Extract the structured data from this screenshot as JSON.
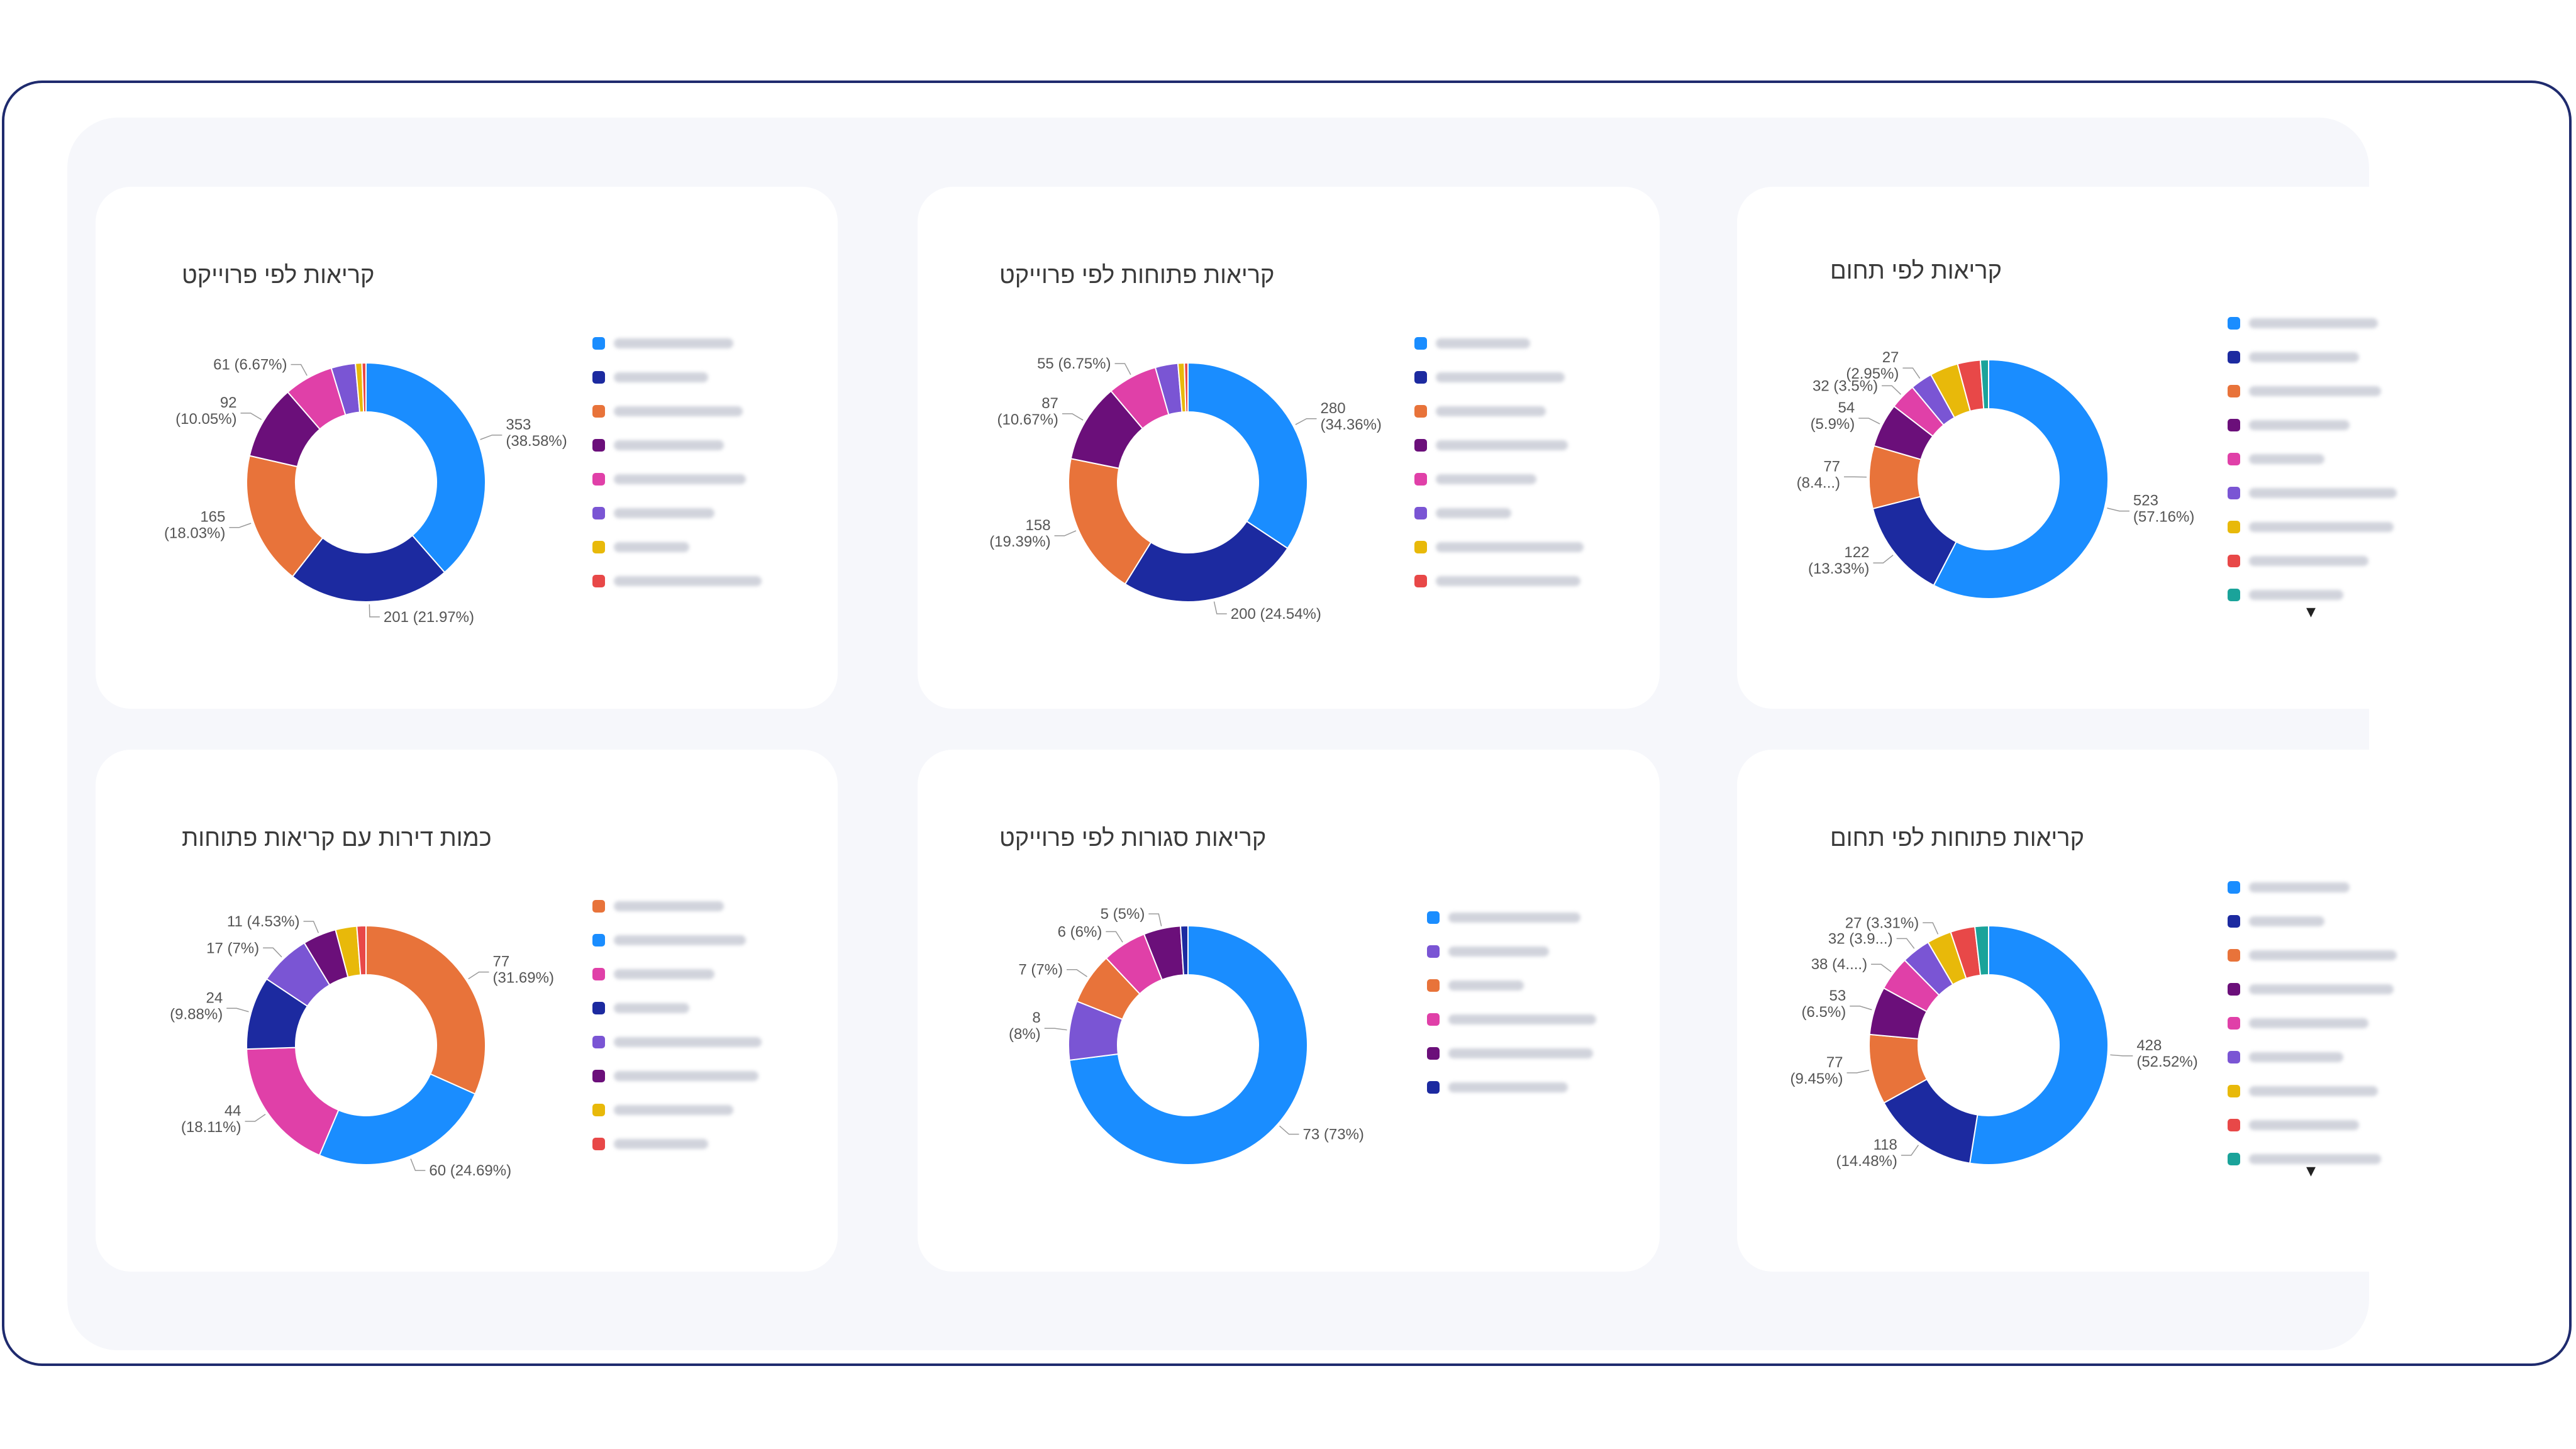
{
  "charts": {
    "c1": {
      "title": "קריאות לפי פרוייקט"
    },
    "c2": {
      "title": "קריאות פתוחות לפי פרוייקט"
    },
    "c3": {
      "title": "קריאות לפי תחום"
    },
    "c4": {
      "title": "כמות דירות עם קריאות פתוחות"
    },
    "c5": {
      "title": "קריאות סגורות לפי פרוייקט"
    },
    "c6": {
      "title": "קריאות פתוחות לפי תחום"
    }
  },
  "chart_data": [
    {
      "id": "c1",
      "type": "pie",
      "title": "קריאות לפי פרוייקט",
      "slices": [
        {
          "value": 353,
          "percent": 38.58,
          "color": "#1a8dff",
          "label": [
            "353",
            "(38.58%)"
          ]
        },
        {
          "value": 201,
          "percent": 21.97,
          "color": "#1c2aa0",
          "label": [
            "201 (21.97%)"
          ]
        },
        {
          "value": 165,
          "percent": 18.03,
          "color": "#e8733a",
          "label": [
            "165",
            "(18.03%)"
          ]
        },
        {
          "value": 92,
          "percent": 10.05,
          "color": "#6b0f7a",
          "label": [
            "92",
            "(10.05%)"
          ]
        },
        {
          "value": 61,
          "percent": 6.67,
          "color": "#e040a8",
          "label": [
            "61 (6.67%)"
          ]
        },
        {
          "value": 30,
          "percent": 3.2,
          "color": "#7a55d4",
          "label": null
        },
        {
          "value": 8,
          "percent": 0.9,
          "color": "#e8b90a",
          "label": null
        },
        {
          "value": 5,
          "percent": 0.5,
          "color": "#e84848",
          "label": null
        }
      ],
      "legend_colors": [
        "#1a8dff",
        "#1c2aa0",
        "#e8733a",
        "#6b0f7a",
        "#e040a8",
        "#7a55d4",
        "#e8b90a",
        "#e84848"
      ]
    },
    {
      "id": "c2",
      "type": "pie",
      "title": "קריאות פתוחות לפי פרוייקט",
      "slices": [
        {
          "value": 280,
          "percent": 34.36,
          "color": "#1a8dff",
          "label": [
            "280",
            "(34.36%)"
          ]
        },
        {
          "value": 200,
          "percent": 24.54,
          "color": "#1c2aa0",
          "label": [
            "200 (24.54%)"
          ]
        },
        {
          "value": 158,
          "percent": 19.39,
          "color": "#e8733a",
          "label": [
            "158",
            "(19.39%)"
          ]
        },
        {
          "value": 87,
          "percent": 10.67,
          "color": "#6b0f7a",
          "label": [
            "87",
            "(10.67%)"
          ]
        },
        {
          "value": 55,
          "percent": 6.75,
          "color": "#e040a8",
          "label": [
            "55 (6.75%)"
          ]
        },
        {
          "value": 25,
          "percent": 3.0,
          "color": "#7a55d4",
          "label": null
        },
        {
          "value": 7,
          "percent": 0.8,
          "color": "#e8b90a",
          "label": null
        },
        {
          "value": 4,
          "percent": 0.5,
          "color": "#e84848",
          "label": null
        }
      ],
      "legend_colors": [
        "#1a8dff",
        "#1c2aa0",
        "#e8733a",
        "#6b0f7a",
        "#e040a8",
        "#7a55d4",
        "#e8b90a",
        "#e84848"
      ]
    },
    {
      "id": "c3",
      "type": "pie",
      "title": "קריאות לפי תחום",
      "slices": [
        {
          "value": 523,
          "percent": 57.16,
          "color": "#1a8dff",
          "label": [
            "523",
            "(57.16%)"
          ]
        },
        {
          "value": 122,
          "percent": 13.33,
          "color": "#1c2aa0",
          "label": [
            "122",
            "(13.33%)"
          ]
        },
        {
          "value": 77,
          "percent": 8.4,
          "color": "#e8733a",
          "label": [
            "77",
            "(8.4...)"
          ]
        },
        {
          "value": 54,
          "percent": 5.9,
          "color": "#6b0f7a",
          "label": [
            "54",
            "(5.9%)"
          ]
        },
        {
          "value": 32,
          "percent": 3.5,
          "color": "#e040a8",
          "label": [
            "32 (3.5%)"
          ]
        },
        {
          "value": 27,
          "percent": 2.95,
          "color": "#7a55d4",
          "label": [
            "27",
            "(2.95%)"
          ]
        },
        {
          "value": 35,
          "percent": 3.8,
          "color": "#e8b90a",
          "label": null
        },
        {
          "value": 28,
          "percent": 3.0,
          "color": "#e84848",
          "label": null
        },
        {
          "value": 10,
          "percent": 1.1,
          "color": "#1aa39a",
          "label": null
        }
      ],
      "legend_colors": [
        "#1a8dff",
        "#1c2aa0",
        "#e8733a",
        "#6b0f7a",
        "#e040a8",
        "#7a55d4",
        "#e8b90a",
        "#e84848",
        "#1aa39a"
      ],
      "has_more": true
    },
    {
      "id": "c4",
      "type": "pie",
      "title": "כמות דירות עם קריאות פתוחות",
      "slices": [
        {
          "value": 77,
          "percent": 31.69,
          "color": "#e8733a",
          "label": [
            "77",
            "(31.69%)"
          ]
        },
        {
          "value": 60,
          "percent": 24.69,
          "color": "#1a8dff",
          "label": [
            "60 (24.69%)"
          ]
        },
        {
          "value": 44,
          "percent": 18.11,
          "color": "#e040a8",
          "label": [
            "44",
            "(18.11%)"
          ]
        },
        {
          "value": 24,
          "percent": 9.88,
          "color": "#1c2aa0",
          "label": [
            "24",
            "(9.88%)"
          ]
        },
        {
          "value": 17,
          "percent": 7,
          "color": "#7a55d4",
          "label": [
            "17 (7%)"
          ]
        },
        {
          "value": 11,
          "percent": 4.53,
          "color": "#6b0f7a",
          "label": [
            "11 (4.53%)"
          ]
        },
        {
          "value": 7,
          "percent": 2.9,
          "color": "#e8b90a",
          "label": null
        },
        {
          "value": 3,
          "percent": 1.2,
          "color": "#e84848",
          "label": null
        }
      ],
      "legend_colors": [
        "#e8733a",
        "#1a8dff",
        "#e040a8",
        "#1c2aa0",
        "#7a55d4",
        "#6b0f7a",
        "#e8b90a",
        "#e84848"
      ]
    },
    {
      "id": "c5",
      "type": "pie",
      "title": "קריאות סגורות לפי פרוייקט",
      "slices": [
        {
          "value": 73,
          "percent": 73,
          "color": "#1a8dff",
          "label": [
            "73 (73%)"
          ]
        },
        {
          "value": 8,
          "percent": 8,
          "color": "#7a55d4",
          "label": [
            "8",
            "(8%)"
          ]
        },
        {
          "value": 7,
          "percent": 7,
          "color": "#e8733a",
          "label": [
            "7 (7%)"
          ]
        },
        {
          "value": 6,
          "percent": 6,
          "color": "#e040a8",
          "label": [
            "6 (6%)"
          ]
        },
        {
          "value": 5,
          "percent": 5,
          "color": "#6b0f7a",
          "label": [
            "5 (5%)"
          ]
        },
        {
          "value": 1,
          "percent": 1,
          "color": "#1c2aa0",
          "label": null
        }
      ],
      "legend_colors": [
        "#1a8dff",
        "#7a55d4",
        "#e8733a",
        "#e040a8",
        "#6b0f7a",
        "#1c2aa0"
      ]
    },
    {
      "id": "c6",
      "type": "pie",
      "title": "קריאות פתוחות לפי תחום",
      "slices": [
        {
          "value": 428,
          "percent": 52.52,
          "color": "#1a8dff",
          "label": [
            "428",
            "(52.52%)"
          ]
        },
        {
          "value": 118,
          "percent": 14.48,
          "color": "#1c2aa0",
          "label": [
            "118",
            "(14.48%)"
          ]
        },
        {
          "value": 77,
          "percent": 9.45,
          "color": "#e8733a",
          "label": [
            "77",
            "(9.45%)"
          ]
        },
        {
          "value": 53,
          "percent": 6.5,
          "color": "#6b0f7a",
          "label": [
            "53",
            "(6.5%)"
          ]
        },
        {
          "value": 38,
          "percent": 4.7,
          "color": "#e040a8",
          "label": [
            "38 (4....)"
          ]
        },
        {
          "value": 32,
          "percent": 3.9,
          "color": "#7a55d4",
          "label": [
            "32 (3.9...)"
          ]
        },
        {
          "value": 27,
          "percent": 3.31,
          "color": "#e8b90a",
          "label": [
            "27 (3.31%)"
          ]
        },
        {
          "value": 27,
          "percent": 3.31,
          "color": "#e84848",
          "label": null
        },
        {
          "value": 15,
          "percent": 1.8,
          "color": "#1aa39a",
          "label": null
        }
      ],
      "legend_colors": [
        "#1a8dff",
        "#1c2aa0",
        "#e8733a",
        "#6b0f7a",
        "#e040a8",
        "#7a55d4",
        "#e8b90a",
        "#e84848",
        "#1aa39a"
      ],
      "has_more": true
    }
  ]
}
